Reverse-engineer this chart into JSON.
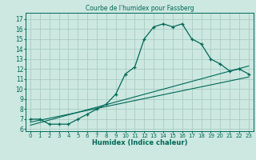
{
  "title": "Courbe de l'humidex pour Fassberg",
  "xlabel": "Humidex (Indice chaleur)",
  "bg_color": "#cce8e0",
  "grid_color": "#aaccc4",
  "line_color": "#006858",
  "xlim": [
    -0.5,
    23.5
  ],
  "ylim": [
    5.8,
    17.6
  ],
  "xticks": [
    0,
    1,
    2,
    3,
    4,
    5,
    6,
    7,
    8,
    9,
    10,
    11,
    12,
    13,
    14,
    15,
    16,
    17,
    18,
    19,
    20,
    21,
    22,
    23
  ],
  "yticks": [
    6,
    7,
    8,
    9,
    10,
    11,
    12,
    13,
    14,
    15,
    16,
    17
  ],
  "main_x": [
    0,
    1,
    2,
    3,
    4,
    5,
    6,
    7,
    8,
    9,
    10,
    11,
    12,
    13,
    14,
    15,
    16,
    17,
    18,
    19,
    20,
    21,
    22,
    23
  ],
  "main_y": [
    7.0,
    7.0,
    6.5,
    6.5,
    6.5,
    7.0,
    7.5,
    8.0,
    8.5,
    9.5,
    11.5,
    12.2,
    15.0,
    16.2,
    16.5,
    16.2,
    16.5,
    15.0,
    14.5,
    13.0,
    12.5,
    11.8,
    12.0,
    11.5
  ],
  "line2_x": [
    0,
    23
  ],
  "line2_y": [
    6.7,
    11.2
  ],
  "line3_x": [
    0,
    23
  ],
  "line3_y": [
    6.4,
    12.3
  ]
}
